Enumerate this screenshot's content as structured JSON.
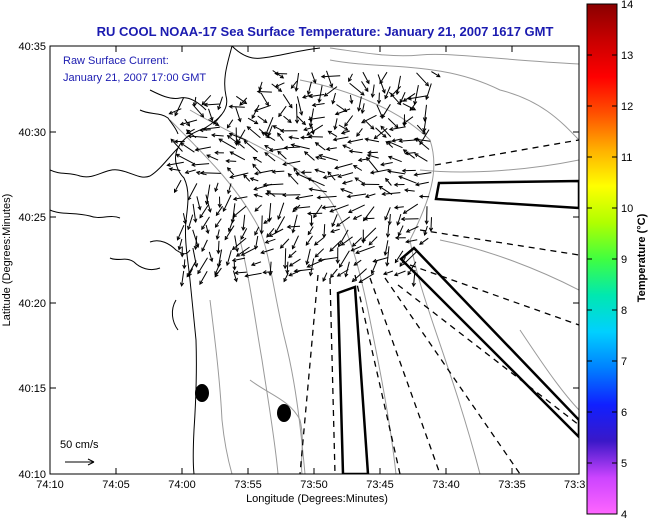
{
  "title": "RU COOL  NOAA-17  Sea Surface Temperature:  January 21, 2007 1617 GMT",
  "annotation": {
    "line1": "Raw Surface Current:",
    "line2": "January 21, 2007 17:00 GMT"
  },
  "scale_label": "50 cm/s",
  "x_axis": {
    "label": "Longitude (Degrees:Minutes)",
    "ticks": [
      "74:10",
      "74:05",
      "74:00",
      "73:55",
      "73:50",
      "73:45",
      "73:40",
      "73:35",
      "73:3"
    ]
  },
  "y_axis": {
    "label": "Latitude (Degrees:Minutes)",
    "ticks": [
      "40:35",
      "40:30",
      "40:25",
      "40:20",
      "40:15",
      "40:10"
    ]
  },
  "colorbar": {
    "label": "Temperature (°C)",
    "ticks": [
      "14",
      "13",
      "12",
      "11",
      "10",
      "9",
      "8",
      "7",
      "6",
      "5",
      "4"
    ],
    "colors": [
      "#ff66ff",
      "#cc44ff",
      "#3a18c8",
      "#1020ff",
      "#0080ff",
      "#00d0ff",
      "#00e8b0",
      "#40ff40",
      "#b0ff00",
      "#ffff00",
      "#ffb000",
      "#ff5000",
      "#ff0000",
      "#c80000",
      "#8a0000"
    ]
  },
  "colors": {
    "title": "#1b1bb0",
    "land_contour": "#000000",
    "bathymetry": "#9a9a9a"
  }
}
